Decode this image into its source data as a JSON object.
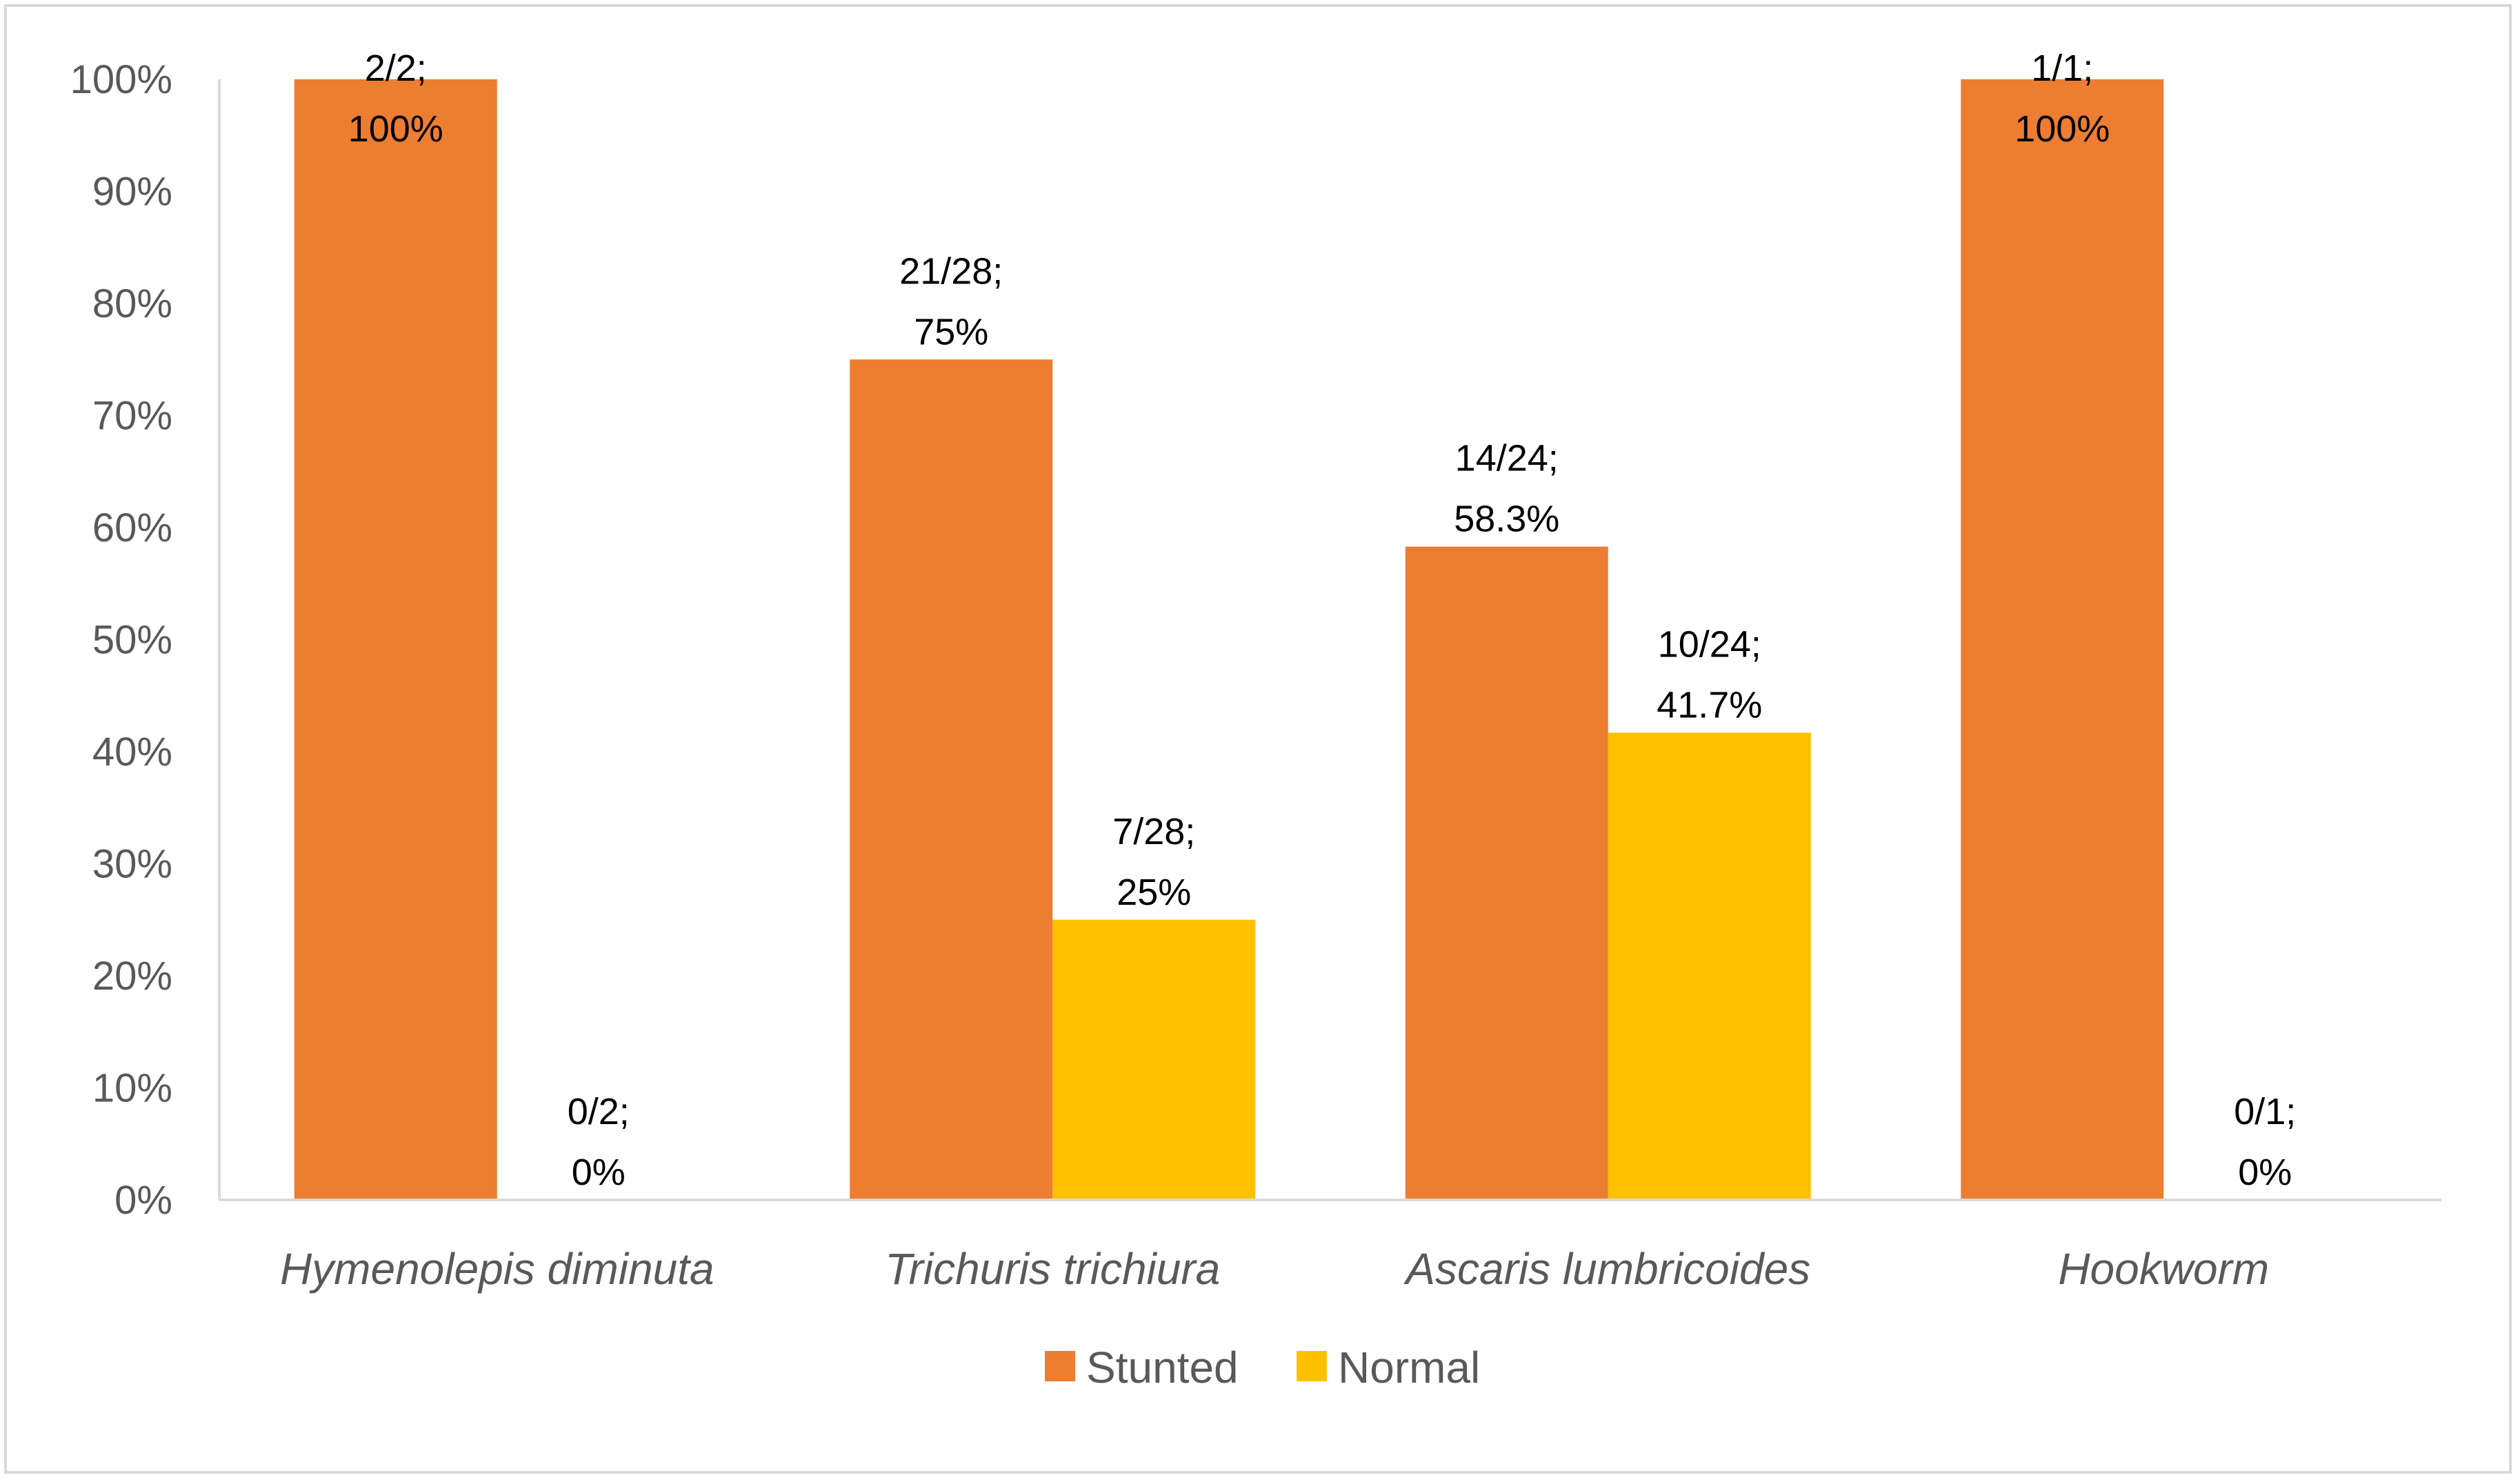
{
  "chart_data": {
    "type": "bar",
    "title": "",
    "xlabel": "",
    "ylabel": "",
    "ylim": [
      0,
      100
    ],
    "yticks": [
      "0%",
      "10%",
      "20%",
      "30%",
      "40%",
      "50%",
      "60%",
      "70%",
      "80%",
      "90%",
      "100%"
    ],
    "categories": [
      "Hymenolepis diminuta",
      "Trichuris trichiura",
      "Ascaris lumbricoides",
      "Hookworm"
    ],
    "series": [
      {
        "name": "Stunted",
        "color": "#ED7D31",
        "values": [
          100,
          75,
          58.3,
          100
        ],
        "labels": [
          [
            "2/2;",
            "100%"
          ],
          [
            "21/28;",
            "75%"
          ],
          [
            "14/24;",
            "58.3%"
          ],
          [
            "1/1;",
            "100%"
          ]
        ]
      },
      {
        "name": "Normal",
        "color": "#FFC000",
        "values": [
          0,
          25,
          41.7,
          0
        ],
        "labels": [
          [
            "0/2;",
            "0%"
          ],
          [
            "7/28;",
            "25%"
          ],
          [
            "10/24;",
            "41.7%"
          ],
          [
            "0/1;",
            "0%"
          ]
        ]
      }
    ],
    "legend": "bottom",
    "grid": false
  }
}
